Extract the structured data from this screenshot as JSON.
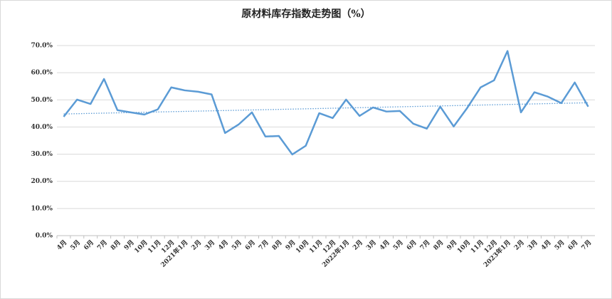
{
  "chart_data": {
    "type": "line",
    "title": "原材料库存指数走势图（%）",
    "categories": [
      "4月",
      "5月",
      "6月",
      "7月",
      "8月",
      "9月",
      "10月",
      "11月",
      "12月",
      "2021年1月",
      "2月",
      "3月",
      "4月",
      "5月",
      "6月",
      "7月",
      "8月",
      "9月",
      "10月",
      "11月",
      "12月",
      "2022年1月",
      "2月",
      "3月",
      "4月",
      "5月",
      "6月",
      "7月",
      "8月",
      "9月",
      "10月",
      "11月",
      "12月",
      "2023年1月",
      "2月",
      "3月",
      "4月",
      "5月",
      "6月",
      "7月"
    ],
    "series": [
      {
        "name": "原材料库存指数",
        "color": "#5b9bd5",
        "values": [
          43.8,
          50.1,
          48.5,
          57.7,
          46.2,
          45.4,
          44.6,
          46.5,
          54.6,
          53.5,
          53.0,
          52.0,
          37.8,
          40.9,
          45.4,
          36.5,
          36.7,
          29.9,
          33.1,
          45.1,
          43.3,
          50.1,
          44.1,
          47.2,
          45.7,
          45.9,
          41.2,
          39.4,
          47.5,
          40.2,
          47.0,
          54.6,
          57.2,
          68.0,
          45.4,
          52.8,
          51.2,
          48.8,
          56.4,
          47.5
        ]
      }
    ],
    "ylim": [
      0,
      70
    ],
    "yticks": [
      {
        "value": 0,
        "label": "0.0%"
      },
      {
        "value": 10,
        "label": "10.0%"
      },
      {
        "value": 20,
        "label": "20.0%"
      },
      {
        "value": 30,
        "label": "30.0%"
      },
      {
        "value": 40,
        "label": "40.0%"
      },
      {
        "value": 50,
        "label": "50.0%"
      },
      {
        "value": 60,
        "label": "60.0%"
      },
      {
        "value": 70,
        "label": "70.0%"
      }
    ],
    "grid": true,
    "trendline": true
  }
}
